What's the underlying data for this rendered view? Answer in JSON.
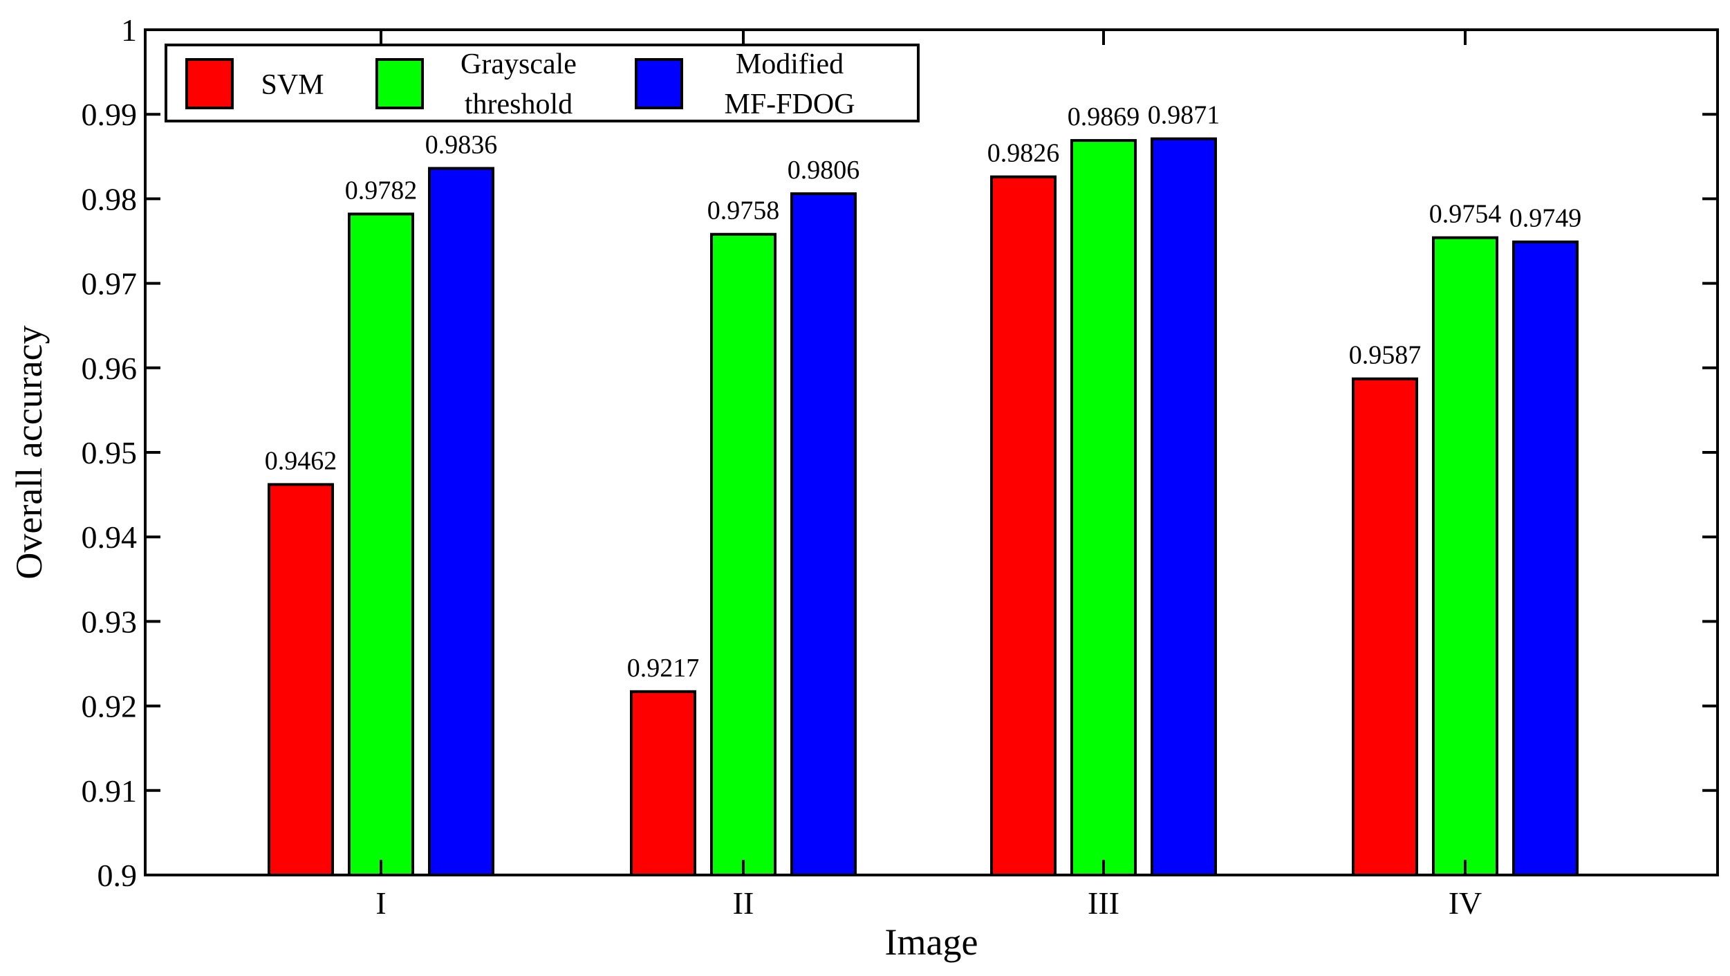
{
  "chart_data": {
    "type": "bar",
    "title": "",
    "xlabel": "Image",
    "ylabel": "Overall accuracy",
    "categories": [
      "I",
      "II",
      "III",
      "IV"
    ],
    "ylim": [
      0.9,
      1.0
    ],
    "yticks": [
      "0.9",
      "0.91",
      "0.92",
      "0.93",
      "0.94",
      "0.95",
      "0.96",
      "0.97",
      "0.98",
      "0.99",
      "1"
    ],
    "grid": false,
    "legend_position": "top-left",
    "series": [
      {
        "name": "SVM",
        "color": "#ff0000",
        "values": [
          0.9462,
          0.9217,
          0.9826,
          0.9587
        ],
        "labels": [
          "0.9462",
          "0.9217",
          "0.9826",
          "0.9587"
        ]
      },
      {
        "name": "Grayscale threshold",
        "name_lines": [
          "Grayscale",
          "threshold"
        ],
        "color": "#00ff00",
        "values": [
          0.9782,
          0.9758,
          0.9869,
          0.9754
        ],
        "labels": [
          "0.9782",
          "0.9758",
          "0.9869",
          "0.9754"
        ]
      },
      {
        "name": "Modified MF-FDOG",
        "name_lines": [
          "Modified",
          "MF-FDOG"
        ],
        "color": "#0000ff",
        "values": [
          0.9836,
          0.9806,
          0.9871,
          0.9749
        ],
        "labels": [
          "0.9836",
          "0.9806",
          "0.9871",
          "0.9749"
        ]
      }
    ]
  }
}
